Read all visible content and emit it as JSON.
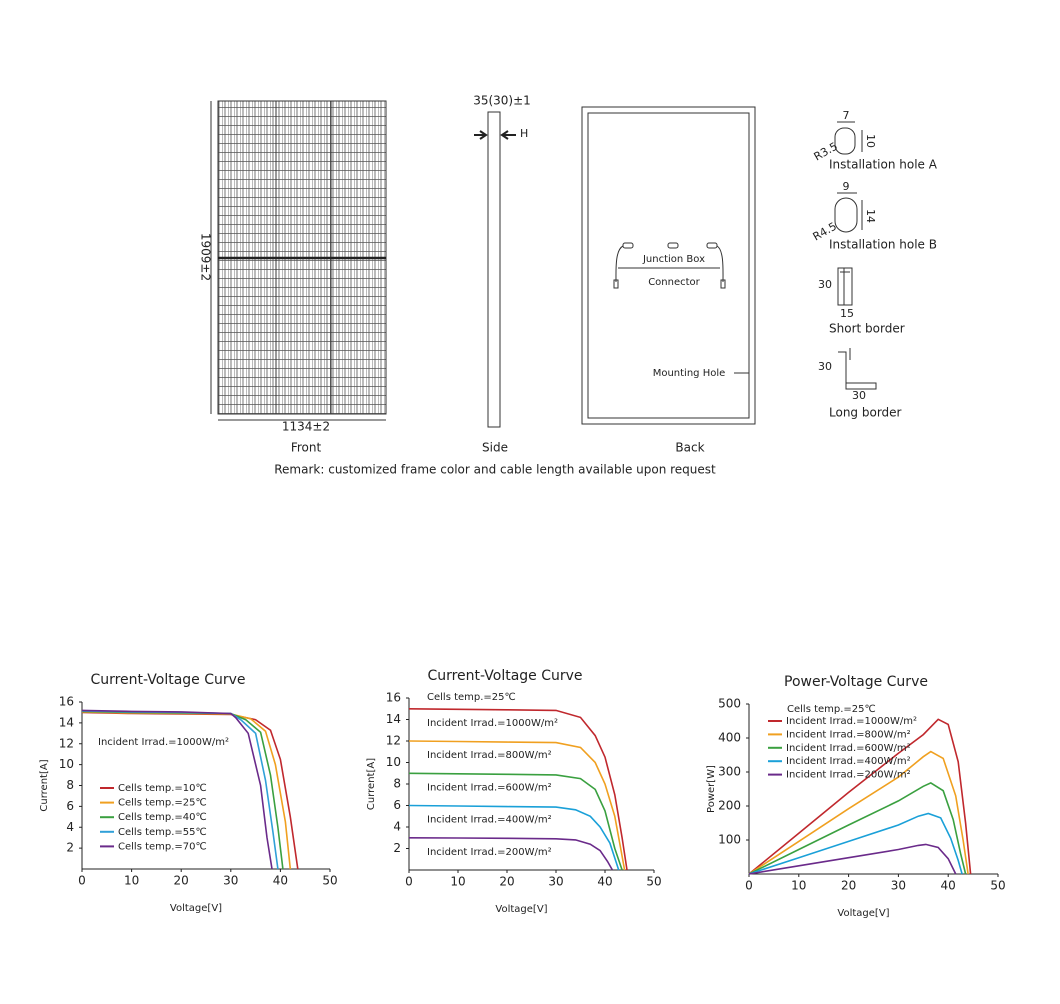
{
  "drawing": {
    "thickness_dim": "35(30)±1",
    "h_mark": "H",
    "height_dim": "1909±2",
    "width_dim": "1134±2",
    "views": [
      "Front",
      "Side",
      "Back"
    ],
    "back_labels": [
      "Junction Box",
      "Connector",
      "Mounting Hole"
    ],
    "details": [
      {
        "label": "Installation hole A",
        "dims": [
          "7",
          "10",
          "R3.5"
        ]
      },
      {
        "label": "Installation hole B",
        "dims": [
          "9",
          "14",
          "R4.5"
        ]
      },
      {
        "label": "Short border",
        "dims": [
          "30",
          "15"
        ]
      },
      {
        "label": "Long border",
        "dims": [
          "30",
          "30"
        ]
      }
    ],
    "remark": "Remark: customized frame color and cable length available upon request"
  },
  "chart_data": [
    {
      "type": "line",
      "title": "Current-Voltage Curve",
      "x_label": "Voltage[V]",
      "y_label": "Current[A]",
      "annotation": "Incident Irrad.=1000W/m²",
      "legend": "lower left",
      "xlim": [
        0,
        50
      ],
      "ylim": [
        0,
        16
      ],
      "xticks": [
        0,
        10,
        20,
        30,
        40,
        50
      ],
      "yticks": [
        2,
        4,
        6,
        8,
        10,
        12,
        14,
        16
      ],
      "series": [
        {
          "name": "Cells temp.=10℃",
          "color": "#c0282d",
          "x": [
            0,
            10,
            20,
            30,
            35,
            38,
            40,
            42,
            43.5
          ],
          "values": [
            15.0,
            14.9,
            14.85,
            14.8,
            14.3,
            13.3,
            10.5,
            5,
            0
          ]
        },
        {
          "name": "Cells temp.=25℃",
          "color": "#f0a020",
          "x": [
            0,
            10,
            20,
            30,
            34,
            37,
            39,
            41,
            42
          ],
          "values": [
            15.05,
            14.95,
            14.9,
            14.85,
            14.4,
            13.2,
            10,
            4.5,
            0
          ]
        },
        {
          "name": "Cells temp.=40℃",
          "color": "#3aa040",
          "x": [
            0,
            10,
            20,
            30,
            33,
            36,
            38,
            39.5,
            40.5
          ],
          "values": [
            15.1,
            15.0,
            14.95,
            14.9,
            14.3,
            13.1,
            9,
            4,
            0
          ]
        },
        {
          "name": "Cells temp.=55℃",
          "color": "#30a0d8",
          "x": [
            0,
            10,
            20,
            30,
            32,
            35,
            37,
            38.5,
            39.5
          ],
          "values": [
            15.15,
            15.05,
            15.0,
            14.9,
            14.3,
            13,
            8.5,
            3.5,
            0
          ]
        },
        {
          "name": "Cells temp.=70℃",
          "color": "#6a2a8a",
          "x": [
            0,
            10,
            20,
            30,
            31,
            33.5,
            36,
            37.3,
            38.3
          ],
          "values": [
            15.2,
            15.1,
            15.05,
            14.9,
            14.5,
            13,
            8,
            3,
            0
          ]
        }
      ]
    },
    {
      "type": "line",
      "title": "Current-Voltage Curve",
      "x_label": "Voltage[V]",
      "y_label": "Current[A]",
      "annotation": "Cells temp.=25℃",
      "legend": "inline",
      "xlim": [
        0,
        50
      ],
      "ylim": [
        0,
        16
      ],
      "xticks": [
        0,
        10,
        20,
        30,
        40,
        50
      ],
      "yticks": [
        2,
        4,
        6,
        8,
        10,
        12,
        14,
        16
      ],
      "series": [
        {
          "name": "Incident Irrad.=1000W/m²",
          "color": "#c0282d",
          "x": [
            0,
            10,
            20,
            30,
            35,
            38,
            40,
            42,
            43.5,
            44.5
          ],
          "values": [
            15,
            14.95,
            14.9,
            14.85,
            14.2,
            12.5,
            10.5,
            7,
            3,
            0
          ]
        },
        {
          "name": "Incident Irrad.=800W/m²",
          "color": "#f0a020",
          "x": [
            0,
            10,
            20,
            30,
            35,
            38,
            40,
            42,
            43,
            44
          ],
          "values": [
            12,
            11.95,
            11.9,
            11.85,
            11.4,
            10,
            8,
            5,
            2.5,
            0
          ]
        },
        {
          "name": "Incident Irrad.=600W/m²",
          "color": "#3aa040",
          "x": [
            0,
            10,
            20,
            30,
            35,
            38,
            40,
            42,
            43.5
          ],
          "values": [
            9,
            8.95,
            8.9,
            8.85,
            8.5,
            7.5,
            5.5,
            2,
            0
          ]
        },
        {
          "name": "Incident Irrad.=400W/m²",
          "color": "#1aa0d8",
          "x": [
            0,
            10,
            20,
            30,
            34,
            37,
            39,
            41,
            42.8
          ],
          "values": [
            6,
            5.95,
            5.9,
            5.85,
            5.6,
            5,
            4,
            2.5,
            0
          ]
        },
        {
          "name": "Incident Irrad.=200W/m²",
          "color": "#6a2a8a",
          "x": [
            0,
            10,
            20,
            30,
            34,
            37,
            39,
            40.5,
            41.5
          ],
          "values": [
            3,
            2.98,
            2.95,
            2.9,
            2.8,
            2.4,
            1.8,
            0.8,
            0
          ]
        }
      ]
    },
    {
      "type": "line",
      "title": "Power-Voltage Curve",
      "x_label": "Voltage[V]",
      "y_label": "Power[W]",
      "annotation": "Cells temp.=25℃",
      "legend": "upper left",
      "xlim": [
        0,
        50
      ],
      "ylim": [
        0,
        500
      ],
      "xticks": [
        0,
        10,
        20,
        30,
        40,
        50
      ],
      "yticks": [
        100,
        200,
        300,
        400,
        500
      ],
      "series": [
        {
          "name": "Incident Irrad.=1000W/m²",
          "color": "#c0282d",
          "x": [
            0,
            10,
            20,
            30,
            35,
            38,
            40,
            42,
            43.5,
            44.5
          ],
          "values": [
            0,
            120,
            240,
            355,
            410,
            455,
            440,
            330,
            150,
            0
          ]
        },
        {
          "name": "Incident Irrad.=800W/m²",
          "color": "#f0a020",
          "x": [
            0,
            10,
            20,
            30,
            35,
            36.5,
            39,
            41.5,
            43,
            44
          ],
          "values": [
            0,
            96,
            192,
            285,
            345,
            360,
            340,
            230,
            100,
            0
          ]
        },
        {
          "name": "Incident Irrad.=600W/m²",
          "color": "#3aa040",
          "x": [
            0,
            10,
            20,
            30,
            35,
            36.5,
            39,
            41,
            42.5,
            43.5
          ],
          "values": [
            0,
            72,
            144,
            215,
            258,
            268,
            245,
            160,
            60,
            0
          ]
        },
        {
          "name": "Incident Irrad.=400W/m²",
          "color": "#1aa0d8",
          "x": [
            0,
            10,
            20,
            30,
            34,
            36,
            38.5,
            40.5,
            42,
            42.8
          ],
          "values": [
            0,
            48,
            96,
            144,
            170,
            178,
            165,
            105,
            40,
            0
          ]
        },
        {
          "name": "Incident Irrad.=200W/m²",
          "color": "#6a2a8a",
          "x": [
            0,
            10,
            20,
            30,
            34,
            35.5,
            38,
            40,
            41,
            41.5
          ],
          "values": [
            0,
            24,
            48,
            72,
            84,
            87,
            78,
            45,
            15,
            0
          ]
        }
      ]
    }
  ]
}
